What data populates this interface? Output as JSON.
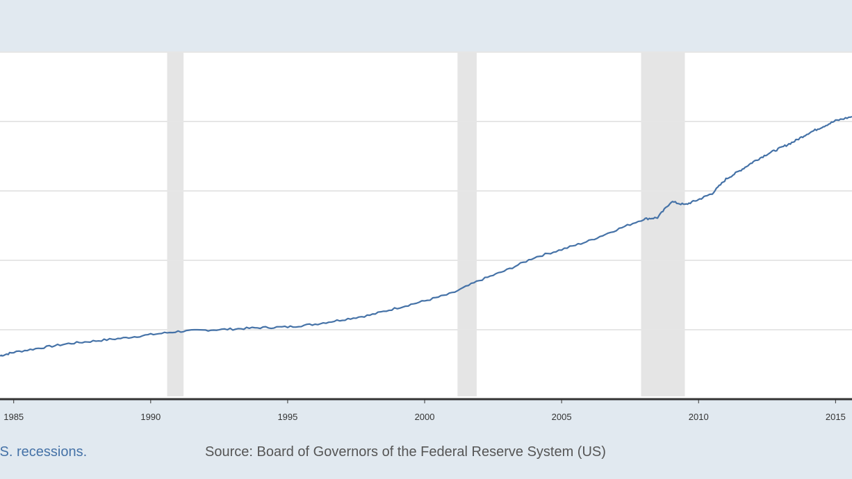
{
  "chart_data": {
    "type": "line",
    "x_ticks": [
      "1985",
      "1990",
      "1995",
      "2000",
      "2005",
      "2010",
      "2015"
    ],
    "xlim": [
      1984.5,
      2015.6
    ],
    "recessions": [
      [
        1990.6,
        1991.2
      ],
      [
        2001.2,
        2001.9
      ],
      [
        2007.9,
        2009.5
      ]
    ],
    "series": [
      {
        "color": "#4572a7",
        "x": [
          1984.5,
          1985,
          1986,
          1987,
          1988,
          1989,
          1990,
          1991,
          1992,
          1993,
          1994,
          1995,
          1996,
          1997,
          1998,
          1999,
          2000,
          2001,
          2002,
          2003,
          2004,
          2005,
          2006,
          2007,
          2008,
          2008.5,
          2009,
          2009.5,
          2010,
          2010.5,
          2011,
          2011.5,
          2012,
          2012.5,
          2013,
          2013.5,
          2014,
          2014.5,
          2015,
          2015.6
        ],
        "y": [
          1.25,
          1.35,
          1.48,
          1.6,
          1.68,
          1.76,
          1.86,
          1.95,
          1.99,
          2.02,
          2.06,
          2.08,
          2.16,
          2.29,
          2.42,
          2.63,
          2.83,
          3.05,
          3.42,
          3.72,
          4.08,
          4.31,
          4.56,
          4.88,
          5.19,
          5.23,
          5.69,
          5.6,
          5.75,
          5.93,
          6.34,
          6.58,
          6.84,
          7.06,
          7.24,
          7.43,
          7.66,
          7.84,
          8.02,
          8.14
        ]
      }
    ],
    "grid": true
  },
  "footer": {
    "recessions_link": ".S. recessions.",
    "source": "Source: Board of Governors of the Federal Reserve System (US)"
  }
}
